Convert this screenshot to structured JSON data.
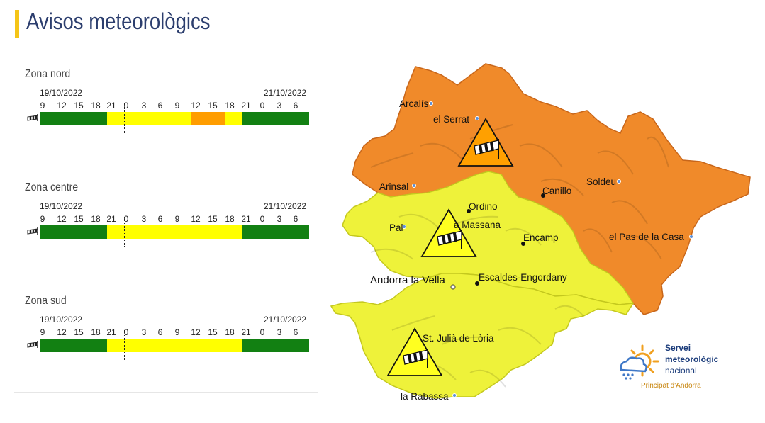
{
  "page": {
    "title": "Avisos meteorològics"
  },
  "colors": {
    "green": "#128012",
    "yellow": "#ffff00",
    "orange": "#ff9d00",
    "title": "#2c3e6e",
    "accent": "#f5c518"
  },
  "timeline_hours": [
    "9",
    "12",
    "15",
    "18",
    "21",
    "0",
    "3",
    "6",
    "9",
    "12",
    "15",
    "18",
    "21",
    "0",
    "3",
    "6"
  ],
  "zones": [
    {
      "name": "Zona nord",
      "start_date": "19/10/2022",
      "end_date": "21/10/2022",
      "icon": "wind-icon",
      "levels": [
        "green",
        "green",
        "green",
        "green",
        "yellow",
        "yellow",
        "yellow",
        "yellow",
        "yellow",
        "orange",
        "orange",
        "yellow",
        "green",
        "green",
        "green",
        "green"
      ]
    },
    {
      "name": "Zona centre",
      "start_date": "19/10/2022",
      "end_date": "21/10/2022",
      "icon": "wind-icon",
      "levels": [
        "green",
        "green",
        "green",
        "green",
        "yellow",
        "yellow",
        "yellow",
        "yellow",
        "yellow",
        "yellow",
        "yellow",
        "yellow",
        "green",
        "green",
        "green",
        "green"
      ]
    },
    {
      "name": "Zona sud",
      "start_date": "19/10/2022",
      "end_date": "21/10/2022",
      "icon": "wind-icon",
      "levels": [
        "green",
        "green",
        "green",
        "green",
        "yellow",
        "yellow",
        "yellow",
        "yellow",
        "yellow",
        "yellow",
        "yellow",
        "yellow",
        "green",
        "green",
        "green",
        "green"
      ]
    }
  ],
  "map": {
    "regions": [
      {
        "name": "north",
        "level": "orange"
      },
      {
        "name": "east",
        "level": "orange"
      },
      {
        "name": "centre",
        "level": "yellow"
      },
      {
        "name": "south",
        "level": "yellow"
      }
    ],
    "places": {
      "arcalis": "Arcalís",
      "el_serrat": "el Serrat",
      "arinsal": "Arinsal",
      "soldeu": "Soldeu",
      "canillo": "Canillo",
      "ordino": "Ordino",
      "la_massana": "a Massana",
      "pal": "Pal",
      "encamp": "Encamp",
      "el_pas": "el Pas de la Casa",
      "andorra": "Andorra la Vella",
      "escaldes": "Escaldes-Engordany",
      "st_julia": "St. Julià de Lòria",
      "rabassa": "la Rabassa"
    }
  },
  "logo": {
    "line1": "Servei",
    "line2": "meteorològic",
    "line3": "nacional",
    "sub": "Principat d'Andorra"
  }
}
